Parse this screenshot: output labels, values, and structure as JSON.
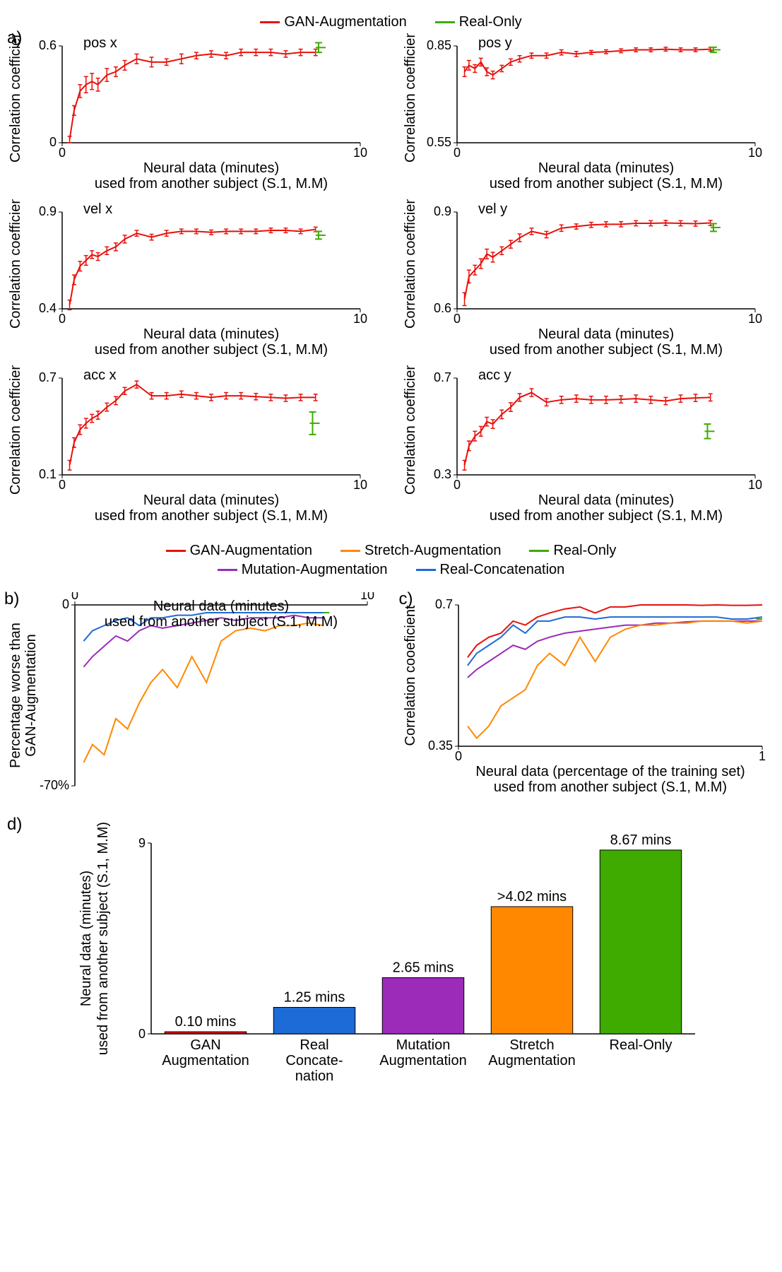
{
  "colors": {
    "gan": "#e8100b",
    "real_only": "#3faa00",
    "stretch": "#ff8800",
    "mutation": "#9b2bb8",
    "real_concat": "#1d6bd6",
    "axis": "#000000",
    "bg": "#ffffff"
  },
  "fonts": {
    "base": "Arial",
    "axis_size": 18,
    "label_size": 20,
    "letter_size": 24
  },
  "legendA": [
    {
      "label": "GAN-Augmentation",
      "colorKey": "gan"
    },
    {
      "label": "Real-Only",
      "colorKey": "real_only"
    }
  ],
  "legendBC": [
    {
      "label": "GAN-Augmentation",
      "colorKey": "gan"
    },
    {
      "label": "Stretch-Augmentation",
      "colorKey": "stretch"
    },
    {
      "label": "Real-Only",
      "colorKey": "real_only"
    },
    {
      "label": "Mutation-Augmentation",
      "colorKey": "mutation"
    },
    {
      "label": "Real-Concatenation",
      "colorKey": "real_concat"
    }
  ],
  "panelA": {
    "letter": "a)",
    "xlabel_line1": "Neural data (minutes)",
    "xlabel_line2": "used from another subject (S.1, M.M)",
    "xlim": [
      0,
      10
    ],
    "xticks": [
      0,
      10
    ],
    "subplots": [
      {
        "title": "pos x",
        "ylim": [
          0,
          0.6
        ],
        "yticks": [
          0,
          0.6
        ],
        "x": [
          0.25,
          0.4,
          0.6,
          0.8,
          1.0,
          1.2,
          1.5,
          1.8,
          2.1,
          2.5,
          3.0,
          3.5,
          4.0,
          4.5,
          5.0,
          5.5,
          6.0,
          6.5,
          7.0,
          7.5,
          8.0,
          8.5
        ],
        "y": [
          0.02,
          0.2,
          0.32,
          0.36,
          0.38,
          0.36,
          0.42,
          0.44,
          0.48,
          0.52,
          0.5,
          0.5,
          0.52,
          0.54,
          0.55,
          0.54,
          0.56,
          0.56,
          0.56,
          0.55,
          0.56,
          0.56
        ],
        "err": [
          0.02,
          0.03,
          0.04,
          0.05,
          0.05,
          0.04,
          0.04,
          0.03,
          0.03,
          0.03,
          0.03,
          0.02,
          0.03,
          0.02,
          0.02,
          0.02,
          0.02,
          0.02,
          0.02,
          0.02,
          0.02,
          0.02
        ],
        "greenX": 8.6,
        "greenY": 0.59,
        "greenErr": 0.03
      },
      {
        "title": "pos y",
        "ylim": [
          0.55,
          0.85
        ],
        "yticks": [
          0.55,
          0.85
        ],
        "x": [
          0.25,
          0.4,
          0.6,
          0.8,
          1.0,
          1.2,
          1.5,
          1.8,
          2.1,
          2.5,
          3.0,
          3.5,
          4.0,
          4.5,
          5.0,
          5.5,
          6.0,
          6.5,
          7.0,
          7.5,
          8.0,
          8.5
        ],
        "y": [
          0.77,
          0.79,
          0.78,
          0.8,
          0.77,
          0.76,
          0.78,
          0.8,
          0.81,
          0.82,
          0.82,
          0.83,
          0.825,
          0.83,
          0.832,
          0.835,
          0.838,
          0.838,
          0.84,
          0.838,
          0.838,
          0.84
        ],
        "err": [
          0.015,
          0.015,
          0.012,
          0.012,
          0.012,
          0.012,
          0.01,
          0.01,
          0.01,
          0.008,
          0.008,
          0.008,
          0.008,
          0.006,
          0.006,
          0.006,
          0.006,
          0.006,
          0.006,
          0.006,
          0.006,
          0.006
        ],
        "greenX": 8.6,
        "greenY": 0.838,
        "greenErr": 0.008
      },
      {
        "title": "vel x",
        "ylim": [
          0.4,
          0.9
        ],
        "yticks": [
          0.4,
          0.9
        ],
        "x": [
          0.25,
          0.4,
          0.6,
          0.8,
          1.0,
          1.2,
          1.5,
          1.8,
          2.1,
          2.5,
          3.0,
          3.5,
          4.0,
          4.5,
          5.0,
          5.5,
          6.0,
          6.5,
          7.0,
          7.5,
          8.0,
          8.5
        ],
        "y": [
          0.42,
          0.55,
          0.62,
          0.65,
          0.68,
          0.67,
          0.7,
          0.72,
          0.76,
          0.79,
          0.77,
          0.79,
          0.8,
          0.8,
          0.795,
          0.8,
          0.8,
          0.8,
          0.805,
          0.805,
          0.8,
          0.81
        ],
        "err": [
          0.025,
          0.025,
          0.025,
          0.025,
          0.02,
          0.02,
          0.02,
          0.02,
          0.02,
          0.015,
          0.015,
          0.015,
          0.012,
          0.012,
          0.012,
          0.012,
          0.012,
          0.012,
          0.012,
          0.012,
          0.012,
          0.012
        ],
        "greenX": 8.6,
        "greenY": 0.78,
        "greenErr": 0.02
      },
      {
        "title": "vel y",
        "ylim": [
          0.6,
          0.9
        ],
        "yticks": [
          0.6,
          0.9
        ],
        "x": [
          0.25,
          0.4,
          0.6,
          0.8,
          1.0,
          1.2,
          1.5,
          1.8,
          2.1,
          2.5,
          3.0,
          3.5,
          4.0,
          4.5,
          5.0,
          5.5,
          6.0,
          6.5,
          7.0,
          7.5,
          8.0,
          8.5
        ],
        "y": [
          0.63,
          0.7,
          0.72,
          0.74,
          0.77,
          0.76,
          0.78,
          0.8,
          0.82,
          0.84,
          0.83,
          0.85,
          0.855,
          0.86,
          0.862,
          0.862,
          0.865,
          0.865,
          0.866,
          0.865,
          0.864,
          0.866
        ],
        "err": [
          0.02,
          0.02,
          0.015,
          0.015,
          0.015,
          0.015,
          0.012,
          0.012,
          0.012,
          0.01,
          0.01,
          0.01,
          0.008,
          0.008,
          0.008,
          0.008,
          0.008,
          0.008,
          0.008,
          0.008,
          0.008,
          0.008
        ],
        "greenX": 8.6,
        "greenY": 0.852,
        "greenErr": 0.012
      },
      {
        "title": "acc x",
        "ylim": [
          0.1,
          0.7
        ],
        "yticks": [
          0.1,
          0.7
        ],
        "x": [
          0.25,
          0.4,
          0.6,
          0.8,
          1.0,
          1.2,
          1.5,
          1.8,
          2.1,
          2.5,
          3.0,
          3.5,
          4.0,
          4.5,
          5.0,
          5.5,
          6.0,
          6.5,
          7.0,
          7.5,
          8.0,
          8.5
        ],
        "y": [
          0.16,
          0.3,
          0.38,
          0.42,
          0.45,
          0.47,
          0.52,
          0.56,
          0.62,
          0.66,
          0.59,
          0.59,
          0.6,
          0.59,
          0.58,
          0.59,
          0.59,
          0.585,
          0.58,
          0.575,
          0.58,
          0.58
        ],
        "err": [
          0.03,
          0.03,
          0.03,
          0.03,
          0.025,
          0.025,
          0.025,
          0.025,
          0.022,
          0.022,
          0.02,
          0.02,
          0.02,
          0.02,
          0.02,
          0.02,
          0.02,
          0.02,
          0.02,
          0.02,
          0.02,
          0.02
        ],
        "greenX": 8.4,
        "greenY": 0.42,
        "greenErr": 0.07
      },
      {
        "title": "acc y",
        "ylim": [
          0.3,
          0.7
        ],
        "yticks": [
          0.3,
          0.7
        ],
        "x": [
          0.25,
          0.4,
          0.6,
          0.8,
          1.0,
          1.2,
          1.5,
          1.8,
          2.1,
          2.5,
          3.0,
          3.5,
          4.0,
          4.5,
          5.0,
          5.5,
          6.0,
          6.5,
          7.0,
          7.5,
          8.0,
          8.5
        ],
        "y": [
          0.34,
          0.42,
          0.46,
          0.48,
          0.52,
          0.51,
          0.55,
          0.58,
          0.62,
          0.64,
          0.6,
          0.61,
          0.615,
          0.61,
          0.61,
          0.612,
          0.615,
          0.61,
          0.605,
          0.615,
          0.618,
          0.62
        ],
        "err": [
          0.02,
          0.02,
          0.02,
          0.02,
          0.018,
          0.018,
          0.018,
          0.018,
          0.016,
          0.016,
          0.015,
          0.015,
          0.015,
          0.015,
          0.015,
          0.015,
          0.015,
          0.015,
          0.015,
          0.015,
          0.015,
          0.015
        ],
        "greenX": 8.4,
        "greenY": 0.48,
        "greenErr": 0.03
      }
    ]
  },
  "panelB": {
    "letter": "b)",
    "xlabel_line1": "Neural data (minutes)",
    "xlabel_line2": "used from another subject (S.1, M.M)",
    "ylabel": "Percentage worse than\nGAN-Augmentation",
    "xlim": [
      0,
      10
    ],
    "xticks": [
      0,
      10
    ],
    "ylim": [
      -70,
      0
    ],
    "yticks": [
      -70,
      0
    ],
    "yTickSuffix": "%",
    "series": [
      {
        "colorKey": "real_concat",
        "x": [
          0.3,
          0.6,
          1.0,
          1.4,
          1.8,
          2.2,
          2.6,
          3.0,
          3.5,
          4.0,
          4.5,
          5.0,
          5.5,
          6.0,
          6.5,
          7.0,
          7.5,
          8.0,
          8.5
        ],
        "y": [
          -14,
          -10,
          -8,
          -6,
          -5,
          -8,
          -5,
          -5,
          -4,
          -4,
          -3,
          -3,
          -3,
          -3,
          -3,
          -3,
          -3,
          -3,
          -3
        ]
      },
      {
        "colorKey": "mutation",
        "x": [
          0.3,
          0.6,
          1.0,
          1.4,
          1.8,
          2.2,
          2.6,
          3.0,
          3.5,
          4.0,
          4.5,
          5.0,
          5.5,
          6.0,
          6.5,
          7.0,
          7.5,
          8.0,
          8.5
        ],
        "y": [
          -24,
          -20,
          -16,
          -12,
          -14,
          -10,
          -8,
          -9,
          -8,
          -7,
          -6,
          -5,
          -6,
          -5,
          -5,
          -5,
          -4,
          -5,
          -5
        ]
      },
      {
        "colorKey": "stretch",
        "x": [
          0.3,
          0.6,
          1.0,
          1.4,
          1.8,
          2.2,
          2.6,
          3.0,
          3.5,
          4.0,
          4.5,
          5.0,
          5.5,
          6.0,
          6.5,
          7.0,
          7.5,
          8.0,
          8.5
        ],
        "y": [
          -61,
          -54,
          -58,
          -44,
          -48,
          -38,
          -30,
          -25,
          -32,
          -20,
          -30,
          -14,
          -10,
          -9,
          -10,
          -8,
          -8,
          -7,
          -8
        ]
      },
      {
        "colorKey": "real_only",
        "x": [
          8.5,
          8.7
        ],
        "y": [
          -3,
          -3
        ]
      }
    ]
  },
  "panelC": {
    "letter": "c)",
    "xlabel_line1": "Neural data (percentage of the training set)",
    "xlabel_line2": "used from another subject (S.1, M.M)",
    "ylabel": "Correlation cooeficient",
    "xlim": [
      0,
      1
    ],
    "xticks": [
      0,
      1
    ],
    "ylim": [
      0.35,
      0.7
    ],
    "yticks": [
      0.35,
      0.7
    ],
    "series": [
      {
        "colorKey": "gan",
        "x": [
          0.03,
          0.06,
          0.1,
          0.14,
          0.18,
          0.22,
          0.26,
          0.3,
          0.35,
          0.4,
          0.45,
          0.5,
          0.55,
          0.6,
          0.65,
          0.7,
          0.75,
          0.8,
          0.85,
          0.9,
          0.95,
          1.0
        ],
        "y": [
          0.57,
          0.6,
          0.62,
          0.63,
          0.66,
          0.65,
          0.67,
          0.68,
          0.69,
          0.695,
          0.68,
          0.695,
          0.695,
          0.7,
          0.7,
          0.7,
          0.7,
          0.699,
          0.7,
          0.699,
          0.699,
          0.7
        ]
      },
      {
        "colorKey": "real_concat",
        "x": [
          0.03,
          0.06,
          0.1,
          0.14,
          0.18,
          0.22,
          0.26,
          0.3,
          0.35,
          0.4,
          0.45,
          0.5,
          0.55,
          0.6,
          0.65,
          0.7,
          0.75,
          0.8,
          0.85,
          0.9,
          0.95,
          1.0
        ],
        "y": [
          0.55,
          0.58,
          0.6,
          0.62,
          0.65,
          0.63,
          0.66,
          0.66,
          0.67,
          0.67,
          0.665,
          0.67,
          0.67,
          0.67,
          0.67,
          0.67,
          0.67,
          0.67,
          0.67,
          0.665,
          0.665,
          0.67
        ]
      },
      {
        "colorKey": "mutation",
        "x": [
          0.03,
          0.06,
          0.1,
          0.14,
          0.18,
          0.22,
          0.26,
          0.3,
          0.35,
          0.4,
          0.45,
          0.5,
          0.55,
          0.6,
          0.65,
          0.7,
          0.75,
          0.8,
          0.85,
          0.9,
          0.95,
          1.0
        ],
        "y": [
          0.52,
          0.54,
          0.56,
          0.58,
          0.6,
          0.59,
          0.61,
          0.62,
          0.63,
          0.635,
          0.64,
          0.645,
          0.65,
          0.65,
          0.655,
          0.655,
          0.658,
          0.66,
          0.66,
          0.66,
          0.66,
          0.66
        ]
      },
      {
        "colorKey": "stretch",
        "x": [
          0.03,
          0.06,
          0.1,
          0.14,
          0.18,
          0.22,
          0.26,
          0.3,
          0.35,
          0.4,
          0.45,
          0.5,
          0.55,
          0.6,
          0.65,
          0.7,
          0.75,
          0.8,
          0.85,
          0.9,
          0.95,
          1.0
        ],
        "y": [
          0.4,
          0.37,
          0.4,
          0.45,
          0.47,
          0.49,
          0.55,
          0.58,
          0.55,
          0.62,
          0.56,
          0.62,
          0.64,
          0.65,
          0.65,
          0.655,
          0.655,
          0.66,
          0.66,
          0.66,
          0.655,
          0.66
        ]
      },
      {
        "colorKey": "real_only",
        "x": [
          0.98,
          1.0
        ],
        "y": [
          0.665,
          0.665
        ]
      }
    ]
  },
  "panelD": {
    "letter": "d)",
    "ylabel_line1": "Neural data (minutes)",
    "ylabel_line2": "used from another subject (S.1, M.M)",
    "ylim": [
      0,
      9
    ],
    "yticks": [
      0,
      9
    ],
    "bars": [
      {
        "label1": "GAN",
        "label2": "Augmentation",
        "value": 0.1,
        "valueLabel": "0.10 mins",
        "colorKey": "gan"
      },
      {
        "label1": "Real",
        "label2": "Concate-",
        "label3": "nation",
        "value": 1.25,
        "valueLabel": "1.25 mins",
        "colorKey": "real_concat"
      },
      {
        "label1": "Mutation",
        "label2": "Augmentation",
        "value": 2.65,
        "valueLabel": "2.65 mins",
        "colorKey": "mutation"
      },
      {
        "label1": "Stretch",
        "label2": "Augmentation",
        "value": 4.02,
        "valueLabel": ">4.02 mins",
        "colorKey": "stretch",
        "overflow": true,
        "drawHeight": 6.0
      },
      {
        "label1": "Real-Only",
        "value": 8.67,
        "valueLabel": "8.67 mins",
        "colorKey": "real_only"
      }
    ],
    "bar_width": 0.75
  }
}
